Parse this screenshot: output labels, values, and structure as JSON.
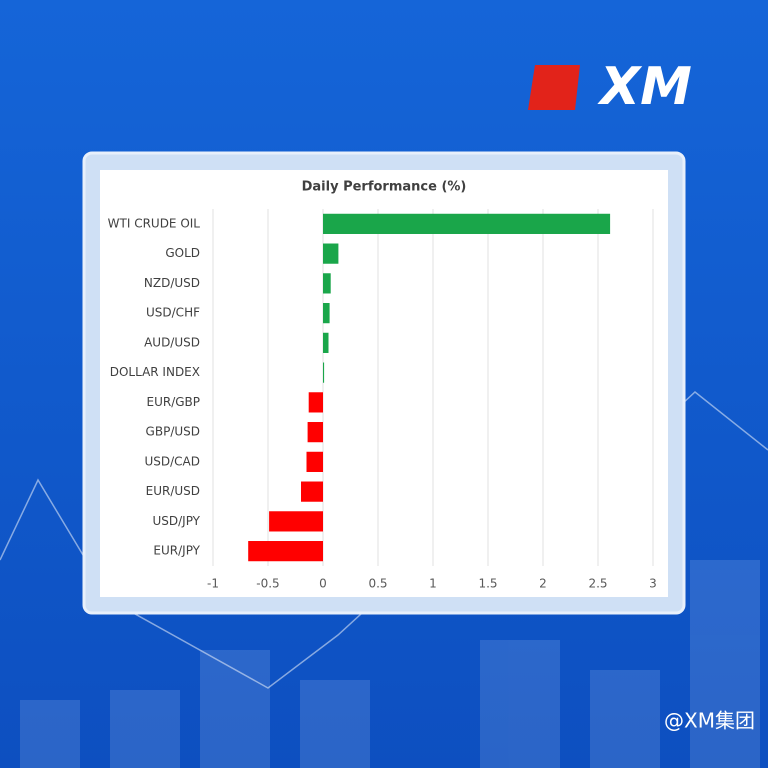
{
  "brand": "XM",
  "watermark": "@XM集团",
  "chart_data": {
    "type": "hbar",
    "title": "Daily Performance (%)",
    "categories": [
      "WTI CRUDE OIL",
      "GOLD",
      "NZD/USD",
      "USD/CHF",
      "AUD/USD",
      "DOLLAR INDEX",
      "EUR/GBP",
      "GBP/USD",
      "USD/CAD",
      "EUR/USD",
      "USD/JPY",
      "EUR/JPY"
    ],
    "values": [
      2.61,
      0.14,
      0.07,
      0.06,
      0.05,
      0.01,
      -0.13,
      -0.14,
      -0.15,
      -0.2,
      -0.49,
      -0.68
    ],
    "positive_color": "#1aa64a",
    "negative_color": "#ff0000",
    "xlim": [
      -1,
      3
    ],
    "xticks": [
      -1,
      -0.5,
      0,
      0.5,
      1,
      1.5,
      2,
      2.5,
      3
    ],
    "grid": true
  }
}
